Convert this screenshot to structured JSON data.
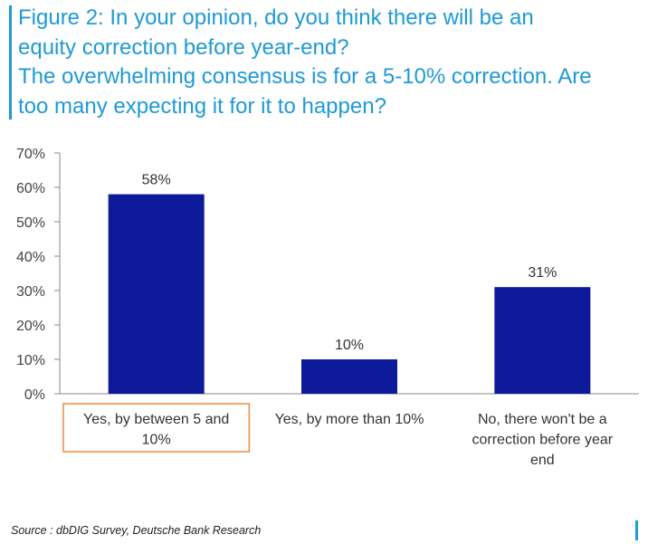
{
  "figure": {
    "title_lines": [
      "Figure 2: In your opinion, do you think there will be an",
      "equity correction before year-end?",
      "The overwhelming consensus is for a 5-10% correction. Are",
      "too many expecting it for it to happen?"
    ],
    "source": "Source : dbDIG Survey, Deutsche Bank Research"
  },
  "colors": {
    "bar": "#0d1a99",
    "accent": "#1e9ad6",
    "highlight_box": "#f0914a"
  },
  "chart_data": {
    "type": "bar",
    "categories": [
      [
        "Yes, by between 5 and",
        "10%"
      ],
      [
        "Yes, by more than 10%"
      ],
      [
        "No, there won't be a",
        "correction before year",
        "end"
      ]
    ],
    "values": [
      58,
      10,
      31
    ],
    "data_labels": [
      "58%",
      "10%",
      "31%"
    ],
    "y_ticks": [
      "0%",
      "10%",
      "20%",
      "30%",
      "40%",
      "50%",
      "60%",
      "70%"
    ],
    "ylim": [
      0,
      70
    ],
    "grid": false,
    "highlighted_category_index": 0
  }
}
